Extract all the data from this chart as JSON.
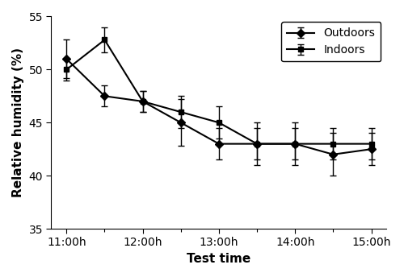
{
  "x_positions": [
    0,
    1,
    2,
    3,
    4,
    5,
    6,
    7,
    8
  ],
  "outdoors_means": [
    51.0,
    47.5,
    47.0,
    45.0,
    43.0,
    43.0,
    43.0,
    42.0,
    42.5
  ],
  "outdoors_errors": [
    1.8,
    1.0,
    1.0,
    2.2,
    1.5,
    2.0,
    2.0,
    2.0,
    1.5
  ],
  "indoors_means": [
    50.0,
    52.8,
    47.0,
    46.0,
    45.0,
    43.0,
    43.0,
    43.0,
    43.0
  ],
  "indoors_errors": [
    1.0,
    1.2,
    1.0,
    1.5,
    1.5,
    1.5,
    1.5,
    1.5,
    1.5
  ],
  "ylim": [
    35,
    55
  ],
  "yticks": [
    35,
    40,
    45,
    50,
    55
  ],
  "ylabel": "Relative humidity (%)",
  "xlabel": "Test time",
  "legend_labels": [
    "Outdoors",
    "Indoors"
  ],
  "line_color": "#000000",
  "marker_outdoors": "D",
  "marker_indoors": "s",
  "markersize": 5,
  "linewidth": 1.5,
  "capsize": 3,
  "legend_loc": "upper right",
  "tick_label_fontsize": 10,
  "axis_label_fontsize": 11,
  "legend_fontsize": 10,
  "xtick_major_positions": [
    0,
    2,
    4,
    6,
    8
  ],
  "xtick_major_labels": [
    "11:00h",
    "12:00h",
    "13:00h",
    "14:00h",
    "15:00h"
  ],
  "xtick_minor_positions": [
    1,
    3,
    5,
    7
  ],
  "background_color": "#ffffff",
  "figure_facecolor": "#ffffff"
}
